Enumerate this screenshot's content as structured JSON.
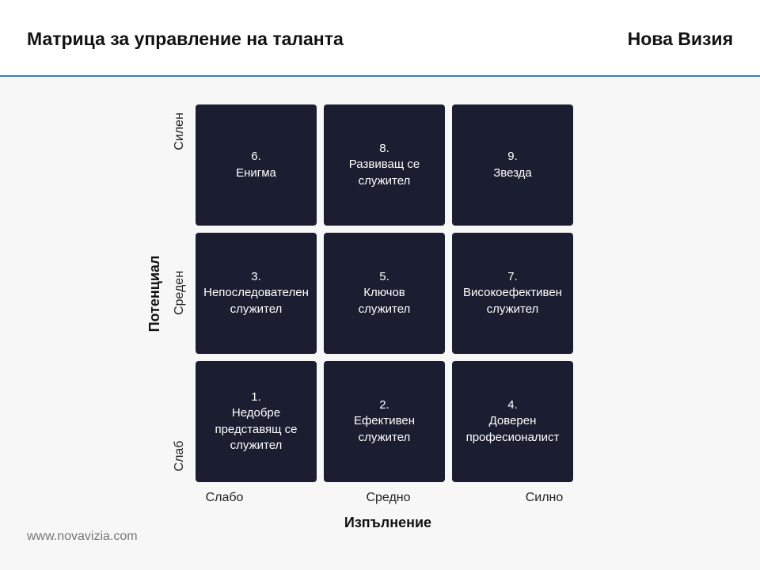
{
  "header": {
    "title": "Матрица за управление на таланта",
    "brand": "Нова Визия"
  },
  "matrix": {
    "y_axis_title": "Потенциал",
    "x_axis_title": "Изпълнение",
    "row_labels": [
      "Силен",
      "Среден",
      "Слаб"
    ],
    "col_labels": [
      "Слабо",
      "Средно",
      "Силно"
    ],
    "cells": [
      {
        "number": "6.",
        "lines": [
          "Енигма"
        ]
      },
      {
        "number": "8.",
        "lines": [
          "Развиващ се",
          "служител"
        ]
      },
      {
        "number": "9.",
        "lines": [
          "Звезда"
        ]
      },
      {
        "number": "3.",
        "lines": [
          "Непоследователен",
          "служител"
        ]
      },
      {
        "number": "5.",
        "lines": [
          "Ключов",
          "служител"
        ]
      },
      {
        "number": "7.",
        "lines": [
          "Високоефективен",
          "служител"
        ]
      },
      {
        "number": "1.",
        "lines": [
          "Недобре",
          "представящ се",
          "служител"
        ]
      },
      {
        "number": "2.",
        "lines": [
          "Ефективен",
          "служител"
        ]
      },
      {
        "number": "4.",
        "lines": [
          "Доверен",
          "професионалист"
        ]
      }
    ],
    "cell_color": "#1b1e30"
  },
  "footer": {
    "website": "www.novavizia.com"
  },
  "colors": {
    "header_rule": "#3a7bd5",
    "background": "#f7f7f8"
  }
}
